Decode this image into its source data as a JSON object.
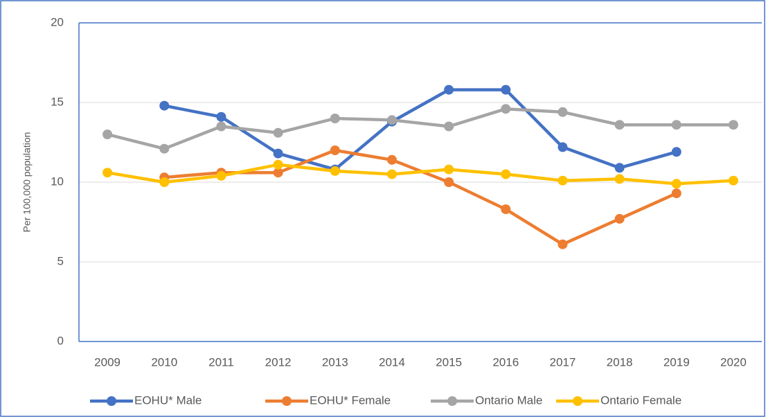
{
  "chart_data": {
    "type": "line",
    "y_label": "Per 100,000 population",
    "categories": [
      "2009",
      "2010",
      "2011",
      "2012",
      "2013",
      "2014",
      "2015",
      "2016",
      "2017",
      "2018",
      "2019",
      "2020"
    ],
    "series": [
      {
        "name": "EOHU* Male",
        "color": "#4472c4",
        "values": [
          null,
          14.8,
          14.1,
          11.8,
          10.8,
          13.8,
          15.8,
          15.8,
          12.2,
          10.9,
          11.9,
          null
        ]
      },
      {
        "name": "EOHU* Female",
        "color": "#ed7d31",
        "values": [
          null,
          10.3,
          10.6,
          10.6,
          12.0,
          11.4,
          10.0,
          8.3,
          6.1,
          7.7,
          9.3,
          null
        ]
      },
      {
        "name": "Ontario Male",
        "color": "#a5a5a5",
        "values": [
          13.0,
          12.1,
          13.5,
          13.1,
          14.0,
          13.9,
          13.5,
          14.6,
          14.4,
          13.6,
          13.6,
          13.6
        ]
      },
      {
        "name": "Ontario Female",
        "color": "#ffc000",
        "values": [
          10.6,
          10.0,
          10.4,
          11.1,
          10.7,
          10.5,
          10.8,
          10.5,
          10.1,
          10.2,
          9.9,
          10.1
        ]
      }
    ],
    "ylim": [
      0,
      20
    ],
    "yticks": [
      0,
      5,
      10,
      15,
      20
    ],
    "grid": true,
    "legend": "bottom"
  }
}
